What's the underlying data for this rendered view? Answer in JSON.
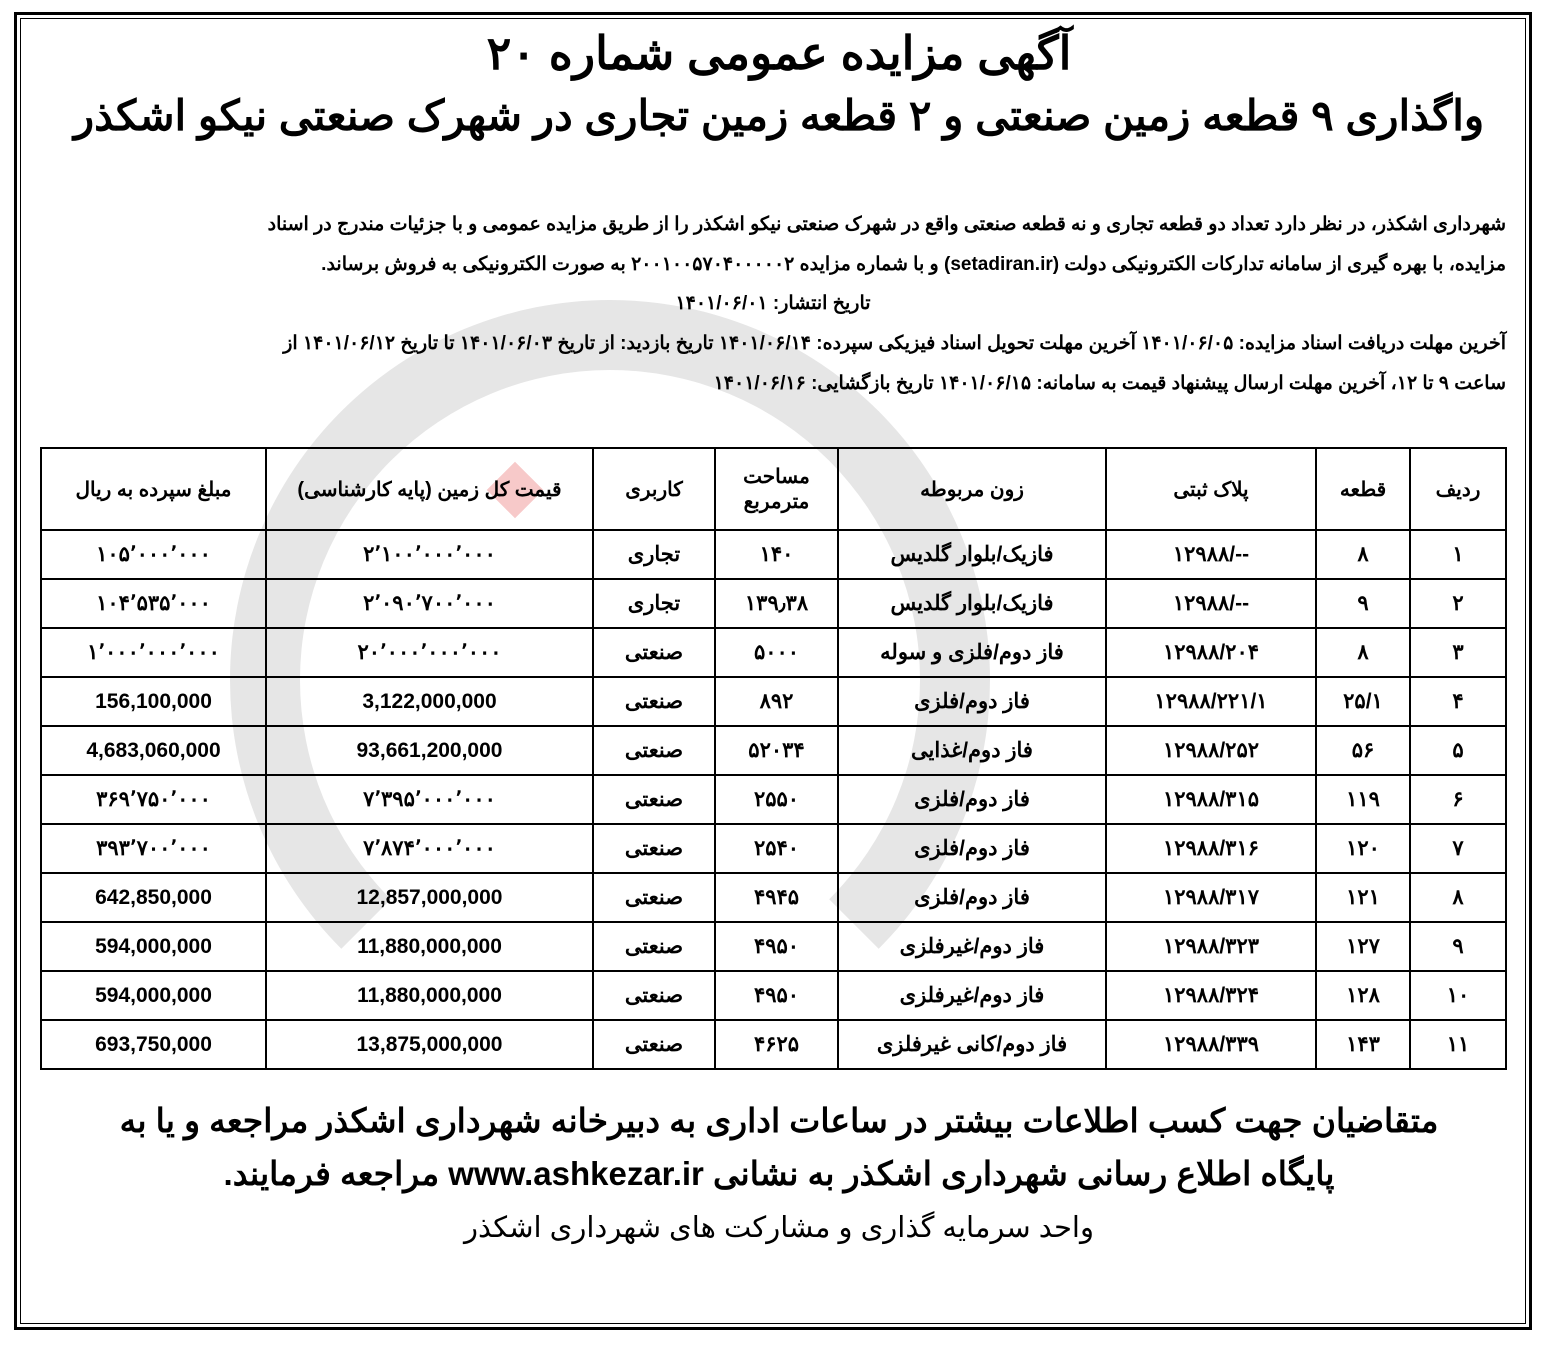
{
  "title": "آگهی مزایده عمومی شماره ۲۰",
  "subtitle": "واگذاری ۹ قطعه زمین صنعتی و ۲ قطعه زمین تجاری در شهرک صنعتی نیکو اشکذر",
  "body": {
    "line1": "شهرداری اشکذر، در نظر دارد تعداد دو قطعه تجاری و نه قطعه صنعتی واقع در شهرک صنعتی نیکو اشکذر را از طریق مزایده عمومی و با جزئیات مندرج در اسناد",
    "line2": "مزایده، با بهره گیری از سامانه تدارکات الکترونیکی دولت (setadiran.ir) و با شماره مزایده ۲۰۰۱۰۰۵۷۰۴۰۰۰۰۰۲ به صورت الکترونیکی به فروش برساند.",
    "publish_date": "تاریخ انتشار: ۱۴۰۱/۰۶/۰۱",
    "line4": "آخرین مهلت دریافت اسناد مزایده: ۱۴۰۱/۰۶/۰۵ آخرین مهلت تحویل اسناد فیزیکی سپرده: ۱۴۰۱/۰۶/۱۴ تاریخ بازدید: از تاریخ ۱۴۰۱/۰۶/۰۳ تا تاریخ ۱۴۰۱/۰۶/۱۲ از",
    "line5": "ساعت ۹ تا ۱۲، آخرین مهلت ارسال پیشنهاد قیمت به سامانه: ۱۴۰۱/۰۶/۱۵ تاریخ بازگشایی: ۱۴۰۱/۰۶/۱۶"
  },
  "table": {
    "headers": [
      "ردیف",
      "قطعه",
      "پلاک ثبتی",
      "زون مربوطه",
      "مساحت مترمربع",
      "کاربری",
      "قیمت کل زمین (پایه کارشناسی)",
      "مبلغ سپرده به ریال"
    ],
    "rows": [
      [
        "۱",
        "۸",
        "--/۱۲۹۸۸",
        "فازیک/بلوار گلدیس",
        "۱۴۰",
        "تجاری",
        "۲٬۱۰۰٬۰۰۰٬۰۰۰",
        "۱۰۵٬۰۰۰٬۰۰۰"
      ],
      [
        "۲",
        "۹",
        "--/۱۲۹۸۸",
        "فازیک/بلوار گلدیس",
        "۱۳۹٫۳۸",
        "تجاری",
        "۲٬۰۹۰٬۷۰۰٬۰۰۰",
        "۱۰۴٬۵۳۵٬۰۰۰"
      ],
      [
        "۳",
        "۸",
        "۱۲۹۸۸/۲۰۴",
        "فاز دوم/فلزی و سوله",
        "۵۰۰۰",
        "صنعتی",
        "۲۰٬۰۰۰٬۰۰۰٬۰۰۰",
        "۱٬۰۰۰٬۰۰۰٬۰۰۰"
      ],
      [
        "۴",
        "۲۵/۱",
        "۱۲۹۸۸/۲۲۱/۱",
        "فاز دوم/فلزی",
        "۸۹۲",
        "صنعتی",
        "3,122,000,000",
        "156,100,000"
      ],
      [
        "۵",
        "۵۶",
        "۱۲۹۸۸/۲۵۲",
        "فاز دوم/غذایی",
        "۵۲۰۳۴",
        "صنعتی",
        "93,661,200,000",
        "4,683,060,000"
      ],
      [
        "۶",
        "۱۱۹",
        "۱۲۹۸۸/۳۱۵",
        "فاز دوم/فلزی",
        "۲۵۵۰",
        "صنعتی",
        "۷٬۳۹۵٬۰۰۰٬۰۰۰",
        "۳۶۹٬۷۵۰٬۰۰۰"
      ],
      [
        "۷",
        "۱۲۰",
        "۱۲۹۸۸/۳۱۶",
        "فاز دوم/فلزی",
        "۲۵۴۰",
        "صنعتی",
        "۷٬۸۷۴٬۰۰۰٬۰۰۰",
        "۳۹۳٬۷۰۰٬۰۰۰"
      ],
      [
        "۸",
        "۱۲۱",
        "۱۲۹۸۸/۳۱۷",
        "فاز دوم/فلزی",
        "۴۹۴۵",
        "صنعتی",
        "12,857,000,000",
        "642,850,000"
      ],
      [
        "۹",
        "۱۲۷",
        "۱۲۹۸۸/۳۲۳",
        "فاز دوم/غیرفلزی",
        "۴۹۵۰",
        "صنعتی",
        "11,880,000,000",
        "594,000,000"
      ],
      [
        "۱۰",
        "۱۲۸",
        "۱۲۹۸۸/۳۲۴",
        "فاز دوم/غیرفلزی",
        "۴۹۵۰",
        "صنعتی",
        "11,880,000,000",
        "594,000,000"
      ],
      [
        "۱۱",
        "۱۴۳",
        "۱۲۹۸۸/۳۳۹",
        "فاز دوم/کانی غیرفلزی",
        "۴۶۲۵",
        "صنعتی",
        "13,875,000,000",
        "693,750,000"
      ]
    ]
  },
  "footer": {
    "line1": "متقاضیان جهت کسب اطلاعات بیشتر در ساعات اداری به دبیرخانه شهرداری اشکذر مراجعه و یا به",
    "line2": "پایگاه اطلاع رسانی شهرداری اشکذر به نشانی www.ashkezar.ir مراجعه فرمایند.",
    "signature": "واحد سرمایه گذاری و مشارکت های شهرداری اشکذر"
  }
}
